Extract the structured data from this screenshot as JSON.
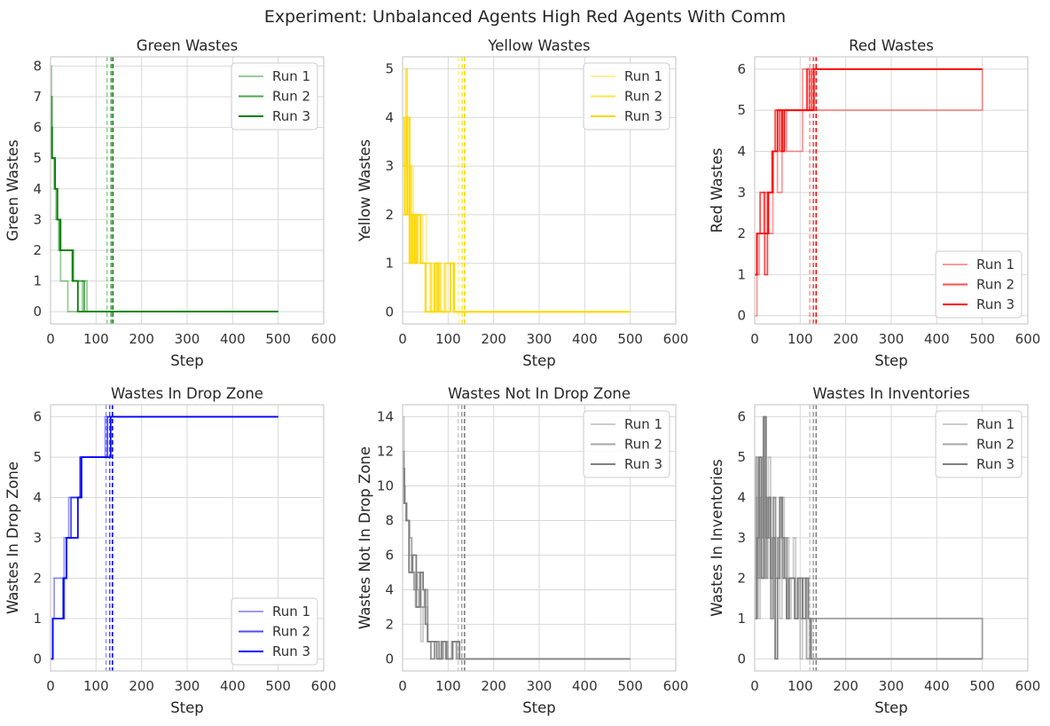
{
  "figure_title": "Experiment: Unbalanced Agents High Red Agents With Comm",
  "chart_data": [
    {
      "type": "line",
      "title": "Green Wastes",
      "xlabel": "Step",
      "ylabel": "Green Wastes",
      "color": "#008000",
      "xlim": [
        0,
        600
      ],
      "ylim": [
        -0.4,
        8.3
      ],
      "xticks": [
        0,
        100,
        200,
        300,
        400,
        500,
        600
      ],
      "yticks": [
        0,
        1,
        2,
        3,
        4,
        5,
        6,
        7,
        8
      ],
      "legend_loc": "top-right",
      "vlines": [
        124,
        133,
        137
      ],
      "series": [
        {
          "name": "Run 1",
          "opacity": 0.4,
          "x": [
            0,
            2,
            4,
            8,
            12,
            18,
            22,
            38,
            70,
            80,
            500
          ],
          "y": [
            8,
            6,
            5,
            4,
            3,
            2,
            1,
            0,
            1,
            0,
            0
          ]
        },
        {
          "name": "Run 2",
          "opacity": 0.7,
          "x": [
            0,
            3,
            6,
            10,
            15,
            20,
            28,
            50,
            60,
            74,
            500
          ],
          "y": [
            7,
            5,
            5,
            4,
            3,
            2,
            2,
            1,
            1,
            0,
            0
          ]
        },
        {
          "name": "Run 3",
          "opacity": 1.0,
          "x": [
            0,
            3,
            10,
            15,
            22,
            48,
            60,
            500
          ],
          "y": [
            6,
            5,
            4,
            3,
            2,
            1,
            0,
            0
          ]
        }
      ]
    },
    {
      "type": "line",
      "title": "Yellow Wastes",
      "xlabel": "Step",
      "ylabel": "Yellow Wastes",
      "color": "#FFD700",
      "xlim": [
        0,
        600
      ],
      "ylim": [
        -0.25,
        5.25
      ],
      "xticks": [
        0,
        100,
        200,
        300,
        400,
        500,
        600
      ],
      "yticks": [
        0,
        1,
        2,
        3,
        4,
        5
      ],
      "legend_loc": "top-right",
      "vlines": [
        123,
        131,
        136
      ],
      "series": [
        {
          "name": "Run 1",
          "opacity": 0.4,
          "x": [
            0,
            4,
            8,
            12,
            16,
            20,
            24,
            30,
            38,
            45,
            52,
            60,
            65,
            72,
            85,
            95,
            110,
            500
          ],
          "y": [
            2,
            4,
            3,
            4,
            2,
            3,
            1,
            2,
            1,
            2,
            0,
            1,
            0,
            1,
            0,
            1,
            0,
            0
          ]
        },
        {
          "name": "Run 2",
          "opacity": 0.7,
          "x": [
            0,
            3,
            7,
            10,
            14,
            18,
            22,
            28,
            33,
            40,
            55,
            62,
            75,
            82,
            92,
            100,
            113,
            500
          ],
          "y": [
            4,
            3,
            5,
            2,
            3,
            1,
            2,
            1,
            2,
            1,
            1,
            0,
            1,
            0,
            1,
            1,
            0,
            0
          ]
        },
        {
          "name": "Run 3",
          "opacity": 1.0,
          "x": [
            0,
            5,
            10,
            15,
            20,
            26,
            32,
            40,
            50,
            70,
            78,
            90,
            105,
            113,
            500
          ],
          "y": [
            3,
            2,
            4,
            1,
            2,
            1,
            2,
            1,
            0,
            1,
            0,
            0,
            1,
            0,
            0
          ]
        }
      ]
    },
    {
      "type": "line",
      "title": "Red Wastes",
      "xlabel": "Step",
      "ylabel": "Red Wastes",
      "color": "#FF0000",
      "xlim": [
        0,
        600
      ],
      "ylim": [
        -0.2,
        6.3
      ],
      "xticks": [
        0,
        100,
        200,
        300,
        400,
        500,
        600
      ],
      "yticks": [
        0,
        1,
        2,
        3,
        4,
        5,
        6
      ],
      "legend_loc": "bottom-right",
      "vlines": [
        121,
        129,
        135
      ],
      "series": [
        {
          "name": "Run 1",
          "opacity": 0.4,
          "x": [
            0,
            5,
            10,
            20,
            30,
            40,
            50,
            60,
            70,
            105,
            115,
            500
          ],
          "y": [
            0,
            1,
            2,
            3,
            2,
            4,
            3,
            5,
            4,
            6,
            5,
            6
          ]
        },
        {
          "name": "Run 2",
          "opacity": 0.7,
          "x": [
            0,
            5,
            12,
            22,
            28,
            38,
            45,
            55,
            60,
            70,
            115,
            120,
            125,
            130,
            500
          ],
          "y": [
            1,
            2,
            3,
            1,
            3,
            4,
            5,
            4,
            5,
            5,
            6,
            5,
            6,
            6,
            6
          ]
        },
        {
          "name": "Run 3",
          "opacity": 1.0,
          "x": [
            0,
            5,
            15,
            30,
            40,
            50,
            60,
            65,
            120,
            130,
            135,
            500
          ],
          "y": [
            1,
            2,
            2,
            3,
            4,
            5,
            4,
            5,
            5,
            6,
            6,
            6
          ]
        }
      ]
    },
    {
      "type": "line",
      "title": "Wastes In Drop Zone",
      "xlabel": "Step",
      "ylabel": "Wastes In Drop Zone",
      "color": "#0000FF",
      "xlim": [
        0,
        600
      ],
      "ylim": [
        -0.3,
        6.3
      ],
      "xticks": [
        0,
        100,
        200,
        300,
        400,
        500,
        600
      ],
      "yticks": [
        0,
        1,
        2,
        3,
        4,
        5,
        6
      ],
      "legend_loc": "bottom-right",
      "vlines": [
        122,
        130,
        136
      ],
      "series": [
        {
          "name": "Run 1",
          "opacity": 0.4,
          "x": [
            0,
            5,
            8,
            18,
            30,
            40,
            55,
            65,
            120,
            500
          ],
          "y": [
            0,
            1,
            2,
            2,
            3,
            4,
            4,
            5,
            6,
            6
          ]
        },
        {
          "name": "Run 2",
          "opacity": 0.7,
          "x": [
            0,
            5,
            15,
            30,
            35,
            45,
            58,
            65,
            125,
            500
          ],
          "y": [
            0,
            1,
            1,
            2,
            3,
            4,
            4,
            5,
            6,
            6
          ]
        },
        {
          "name": "Run 3",
          "opacity": 1.0,
          "x": [
            0,
            5,
            20,
            28,
            35,
            48,
            60,
            68,
            132,
            500
          ],
          "y": [
            0,
            1,
            1,
            2,
            3,
            3,
            4,
            5,
            6,
            6
          ]
        }
      ]
    },
    {
      "type": "line",
      "title": "Wastes Not In Drop Zone",
      "xlabel": "Step",
      "ylabel": "Wastes Not In Drop Zone",
      "color": "#808080",
      "xlim": [
        0,
        600
      ],
      "ylim": [
        -0.7,
        14.7
      ],
      "xticks": [
        0,
        100,
        200,
        300,
        400,
        500,
        600
      ],
      "yticks": [
        0,
        2,
        4,
        6,
        8,
        10,
        12,
        14
      ],
      "legend_loc": "top-right",
      "vlines": [
        122,
        130,
        136
      ],
      "series": [
        {
          "name": "Run 1",
          "opacity": 0.4,
          "x": [
            0,
            3,
            6,
            10,
            15,
            20,
            28,
            35,
            40,
            45,
            55,
            62,
            70,
            80,
            90,
            100,
            110,
            120,
            500
          ],
          "y": [
            14,
            10,
            9,
            8,
            6,
            5,
            3,
            4,
            1,
            3,
            1,
            0,
            1,
            0,
            1,
            0,
            1,
            0,
            0
          ]
        },
        {
          "name": "Run 2",
          "opacity": 0.7,
          "x": [
            0,
            3,
            8,
            15,
            20,
            25,
            32,
            40,
            48,
            55,
            62,
            70,
            80,
            88,
            98,
            108,
            118,
            500
          ],
          "y": [
            12,
            9,
            8,
            7,
            5,
            4,
            5,
            3,
            4,
            1,
            0,
            1,
            0,
            1,
            0,
            1,
            0,
            0
          ]
        },
        {
          "name": "Run 3",
          "opacity": 1.0,
          "x": [
            0,
            4,
            8,
            14,
            22,
            30,
            38,
            45,
            50,
            55,
            65,
            75,
            85,
            95,
            110,
            125,
            500
          ],
          "y": [
            11,
            9,
            8,
            5,
            6,
            3,
            5,
            4,
            2,
            1,
            1,
            0,
            1,
            0,
            1,
            0,
            0
          ]
        }
      ]
    },
    {
      "type": "line",
      "title": "Wastes In Inventories",
      "xlabel": "Step",
      "ylabel": "Wastes In Inventories",
      "color": "#808080",
      "xlim": [
        0,
        600
      ],
      "ylim": [
        -0.3,
        6.3
      ],
      "xticks": [
        0,
        100,
        200,
        300,
        400,
        500,
        600
      ],
      "yticks": [
        0,
        1,
        2,
        3,
        4,
        5,
        6
      ],
      "legend_loc": "top-right",
      "vlines": [
        121,
        129,
        135
      ],
      "series": [
        {
          "name": "Run 1",
          "opacity": 0.4,
          "x": [
            0,
            4,
            8,
            12,
            16,
            20,
            25,
            30,
            35,
            40,
            45,
            50,
            55,
            60,
            65,
            70,
            75,
            80,
            85,
            90,
            95,
            100,
            105,
            112,
            120,
            500
          ],
          "y": [
            2,
            4,
            1,
            5,
            3,
            4,
            2,
            5,
            1,
            4,
            2,
            3,
            1,
            4,
            2,
            3,
            1,
            2,
            3,
            1,
            2,
            0,
            2,
            1,
            0,
            0
          ]
        },
        {
          "name": "Run 2",
          "opacity": 0.7,
          "x": [
            0,
            3,
            7,
            11,
            15,
            19,
            23,
            27,
            31,
            36,
            41,
            46,
            51,
            56,
            61,
            66,
            71,
            76,
            82,
            88,
            94,
            100,
            106,
            114,
            122,
            500
          ],
          "y": [
            1,
            5,
            2,
            4,
            3,
            6,
            2,
            4,
            3,
            1,
            4,
            2,
            3,
            4,
            2,
            3,
            1,
            2,
            2,
            1,
            2,
            1,
            2,
            0,
            1,
            0
          ]
        },
        {
          "name": "Run 3",
          "opacity": 1.0,
          "x": [
            0,
            5,
            10,
            15,
            20,
            25,
            30,
            35,
            40,
            45,
            50,
            55,
            60,
            65,
            70,
            75,
            80,
            88,
            95,
            105,
            112,
            118,
            124,
            130,
            500
          ],
          "y": [
            1,
            3,
            5,
            2,
            6,
            3,
            4,
            2,
            3,
            0,
            2,
            4,
            3,
            2,
            1,
            2,
            2,
            1,
            2,
            1,
            2,
            1,
            0,
            0,
            0
          ]
        }
      ]
    }
  ]
}
